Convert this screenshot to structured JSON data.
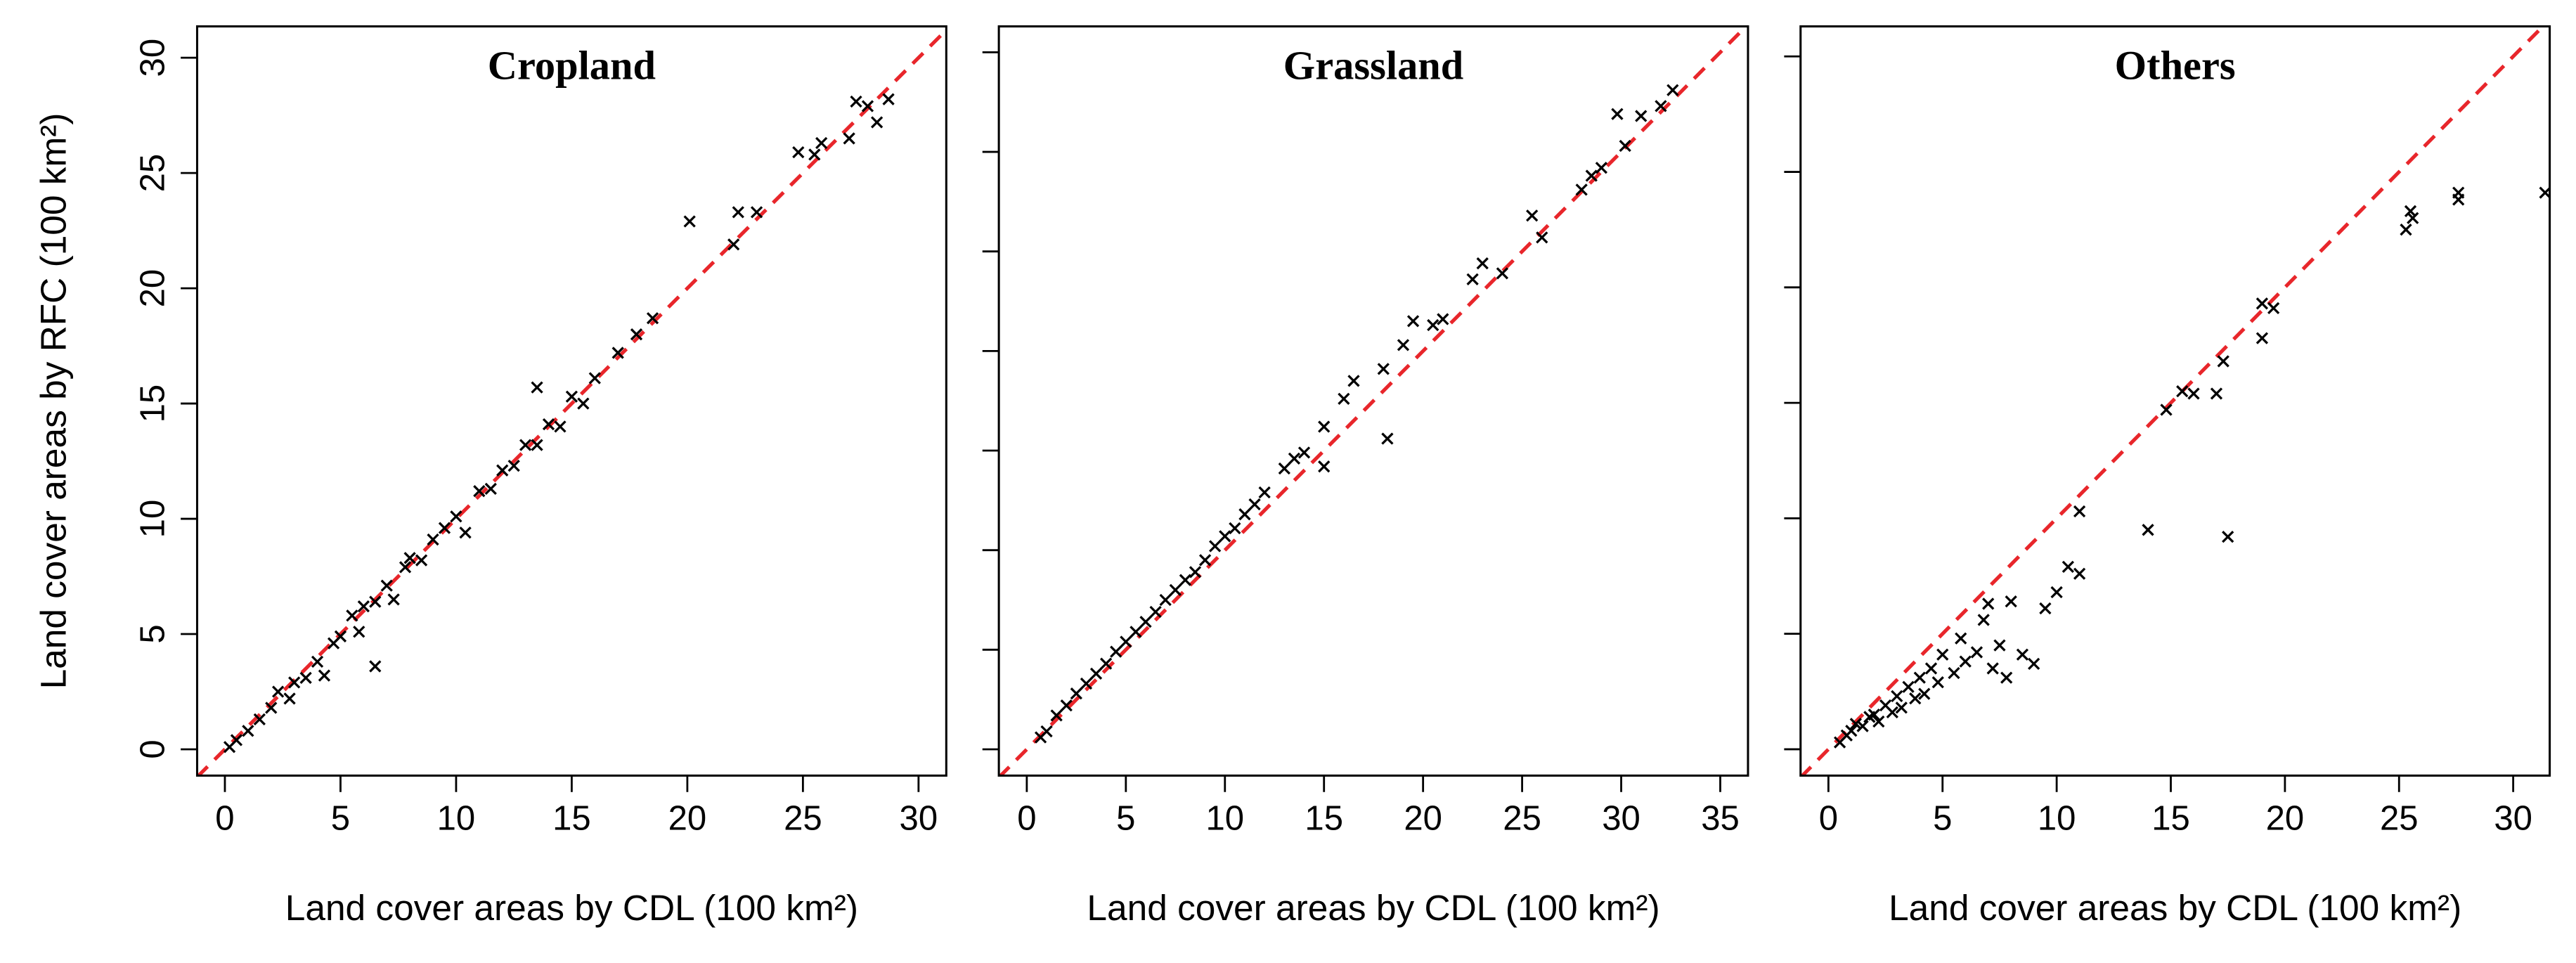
{
  "chart_data": [
    {
      "type": "scatter",
      "title": "Cropland",
      "x_label": "Land cover areas by CDL (100 km²)",
      "y_label": "Land cover areas by RFC (100 km²)",
      "show_ytick_labels": true,
      "marker": "x",
      "marker_color": "#000000",
      "identity_line_color": "#e8262b",
      "xlim": [
        -1.2,
        31.2
      ],
      "ylim": [
        -1.14,
        31.36
      ],
      "xticks": [
        0,
        5,
        10,
        15,
        20,
        25,
        30
      ],
      "yticks": [
        0,
        5,
        10,
        15,
        20,
        25,
        30
      ],
      "x": [
        0.2,
        0.5,
        1,
        1.5,
        2,
        2.3,
        2.8,
        3,
        3.5,
        4,
        4.3,
        4.7,
        5,
        5.5,
        5.8,
        6,
        6.5,
        7,
        7.3,
        7.8,
        8,
        8.5,
        9,
        9.5,
        10,
        10.4,
        11,
        11.5,
        12,
        12.5,
        13,
        13.5,
        14,
        14.5,
        15,
        15.5,
        16,
        17,
        17.8,
        18.5,
        20.1,
        22,
        22.2,
        23,
        24.8,
        25.5,
        25.8,
        27,
        27.3,
        27.8,
        28.2,
        28.7,
        13.5,
        6.5
      ],
      "values": [
        0.1,
        0.4,
        0.8,
        1.3,
        1.8,
        2.5,
        2.2,
        2.9,
        3.1,
        3.8,
        3.2,
        4.6,
        4.9,
        5.8,
        5.1,
        6.2,
        6.4,
        7.1,
        6.5,
        7.9,
        8.3,
        8.2,
        9.1,
        9.6,
        10.1,
        9.4,
        11.2,
        11.3,
        12.1,
        12.3,
        13.2,
        13.2,
        14.1,
        14,
        15.3,
        15,
        16.1,
        17.2,
        18,
        18.7,
        22.9,
        21.9,
        23.3,
        23.3,
        25.9,
        25.8,
        26.3,
        26.5,
        28.1,
        27.9,
        27.2,
        28.2,
        15.7,
        3.6
      ]
    },
    {
      "type": "scatter",
      "title": "Grassland",
      "x_label": "Land cover areas by CDL (100 km²)",
      "show_ytick_labels": false,
      "marker": "x",
      "marker_color": "#000000",
      "identity_line_color": "#e8262b",
      "xlim": [
        -1.41,
        36.4
      ],
      "ylim": [
        -1.32,
        36.3
      ],
      "xticks": [
        0,
        5,
        10,
        15,
        20,
        25,
        30,
        35
      ],
      "yticks": [
        0,
        5,
        10,
        15,
        20,
        25,
        30,
        35
      ],
      "x": [
        0.7,
        1,
        1.5,
        2,
        2.5,
        3,
        3.5,
        4,
        4.5,
        5,
        5.5,
        6,
        6.5,
        7,
        7.5,
        8,
        8.5,
        9,
        9.5,
        10,
        10.5,
        11,
        11.5,
        12,
        13,
        13.5,
        14,
        15,
        16,
        16.5,
        18,
        18.2,
        19,
        19.5,
        20.5,
        21,
        22.5,
        23,
        24,
        25.5,
        26,
        28,
        28.5,
        29,
        29.8,
        30.2,
        31,
        32,
        32.6,
        15
      ],
      "values": [
        0.6,
        0.9,
        1.7,
        2.2,
        2.8,
        3.3,
        3.8,
        4.3,
        4.9,
        5.4,
        5.9,
        6.4,
        6.9,
        7.5,
        8,
        8.5,
        8.9,
        9.5,
        10.2,
        10.7,
        11.1,
        11.8,
        12.3,
        12.9,
        14.1,
        14.6,
        14.9,
        16.2,
        17.6,
        18.5,
        19.1,
        15.6,
        20.3,
        21.5,
        21.3,
        21.6,
        23.6,
        24.4,
        23.9,
        26.8,
        25.7,
        28.1,
        28.8,
        29.2,
        31.9,
        30.3,
        31.8,
        32.3,
        33.1,
        14.2
      ]
    },
    {
      "type": "scatter",
      "title": "Others",
      "x_label": "Land cover areas by CDL (100 km²)",
      "show_ytick_labels": false,
      "marker": "x",
      "marker_color": "#000000",
      "identity_line_color": "#e8262b",
      "xlim": [
        -1.22,
        31.6
      ],
      "ylim": [
        -1.14,
        31.3
      ],
      "xticks": [
        0,
        5,
        10,
        15,
        20,
        25,
        30
      ],
      "yticks": [
        0,
        5,
        10,
        15,
        20,
        25,
        30
      ],
      "x": [
        0.5,
        0.8,
        1,
        1.2,
        1.5,
        1.8,
        2,
        2.2,
        2.5,
        2.8,
        3,
        3.2,
        3.5,
        3.8,
        4,
        4.2,
        4.5,
        4.8,
        5,
        5.5,
        5.8,
        6,
        6.5,
        6.8,
        7,
        7.2,
        7.5,
        7.8,
        8,
        8.5,
        9,
        9.5,
        10,
        10.5,
        11,
        11,
        14,
        14.8,
        15.5,
        16,
        17,
        17.3,
        17.5,
        19,
        19,
        19.5,
        25.3,
        25.5,
        25.6,
        27.6,
        27.6,
        31.4
      ],
      "values": [
        0.3,
        0.6,
        0.8,
        1.1,
        1,
        1.4,
        1.5,
        1.2,
        1.9,
        1.6,
        2.3,
        1.8,
        2.7,
        2.2,
        3.1,
        2.4,
        3.5,
        2.9,
        4.1,
        3.3,
        4.8,
        3.8,
        4.2,
        5.6,
        6.3,
        3.5,
        4.5,
        3.1,
        6.4,
        4.1,
        3.7,
        6.1,
        6.8,
        7.9,
        7.6,
        10.3,
        9.5,
        14.7,
        15.5,
        15.4,
        15.4,
        16.8,
        9.2,
        19.3,
        17.8,
        19.1,
        22.5,
        23.3,
        23.0,
        23.8,
        24.1,
        24.1
      ]
    }
  ]
}
